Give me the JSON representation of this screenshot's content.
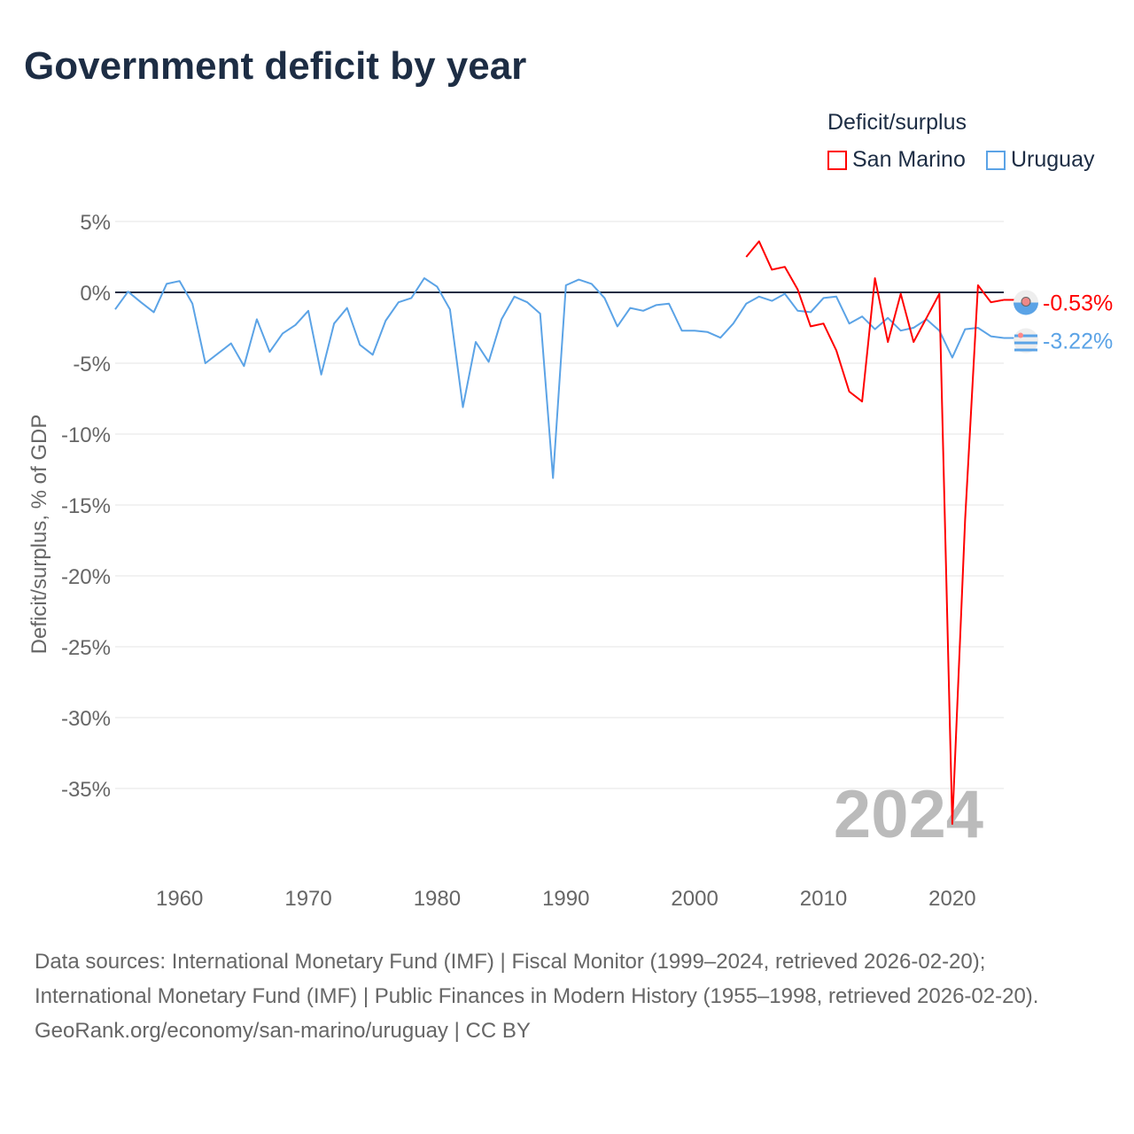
{
  "title": "Government deficit by year",
  "legend": {
    "title": "Deficit/surplus",
    "items": [
      {
        "name": "San Marino",
        "color": "#ff0000"
      },
      {
        "name": "Uruguay",
        "color": "#5ba3e6"
      }
    ]
  },
  "chart_data": {
    "type": "line",
    "title": "Government deficit by year",
    "xlabel": "",
    "ylabel": "Deficit/surplus, % of GDP",
    "xlim": [
      1955,
      2024
    ],
    "ylim": [
      -40,
      5
    ],
    "yticks": [
      5,
      0,
      -5,
      -10,
      -15,
      -20,
      -25,
      -30,
      -35
    ],
    "ytick_labels": [
      "5%",
      "0%",
      "-5%",
      "-10%",
      "-15%",
      "-20%",
      "-25%",
      "-30%",
      "-35%"
    ],
    "xticks": [
      1960,
      1970,
      1980,
      1990,
      2000,
      2010,
      2020
    ],
    "xtick_labels": [
      "1960",
      "1970",
      "1980",
      "1990",
      "2000",
      "2010",
      "2020"
    ],
    "grid": true,
    "year_watermark": "2024",
    "series": [
      {
        "name": "San Marino",
        "color": "#ff0000",
        "start_year": 2004,
        "end_label": "-0.53%",
        "values": [
          2.5,
          3.6,
          1.6,
          1.8,
          0.2,
          -2.4,
          -2.2,
          -4.1,
          -7.0,
          -7.7,
          1.0,
          -3.5,
          -0.1,
          -3.5,
          -1.8,
          -0.1,
          -37.5,
          -16.0,
          0.5,
          -0.7,
          -0.53
        ]
      },
      {
        "name": "Uruguay",
        "color": "#5ba3e6",
        "start_year": 1955,
        "end_label": "-3.22%",
        "values": [
          -1.2,
          0.05,
          -0.7,
          -1.4,
          0.6,
          0.8,
          -0.8,
          -5.0,
          -4.3,
          -3.6,
          -5.2,
          -1.9,
          -4.2,
          -2.9,
          -2.3,
          -1.3,
          -5.8,
          -2.2,
          -1.1,
          -3.7,
          -4.4,
          -2.0,
          -0.7,
          -0.4,
          1.0,
          0.4,
          -1.2,
          -8.1,
          -3.5,
          -4.9,
          -1.9,
          -0.3,
          -0.7,
          -1.5,
          -13.1,
          0.5,
          0.9,
          0.6,
          -0.4,
          -2.4,
          -1.1,
          -1.3,
          -0.9,
          -0.8,
          -2.7,
          -2.7,
          -2.8,
          -3.2,
          -2.2,
          -0.8,
          -0.3,
          -0.6,
          -0.1,
          -1.3,
          -1.4,
          -0.4,
          -0.3,
          -2.2,
          -1.7,
          -2.6,
          -1.8,
          -2.7,
          -2.5,
          -1.9,
          -2.7,
          -4.6,
          -2.6,
          -2.5,
          -3.1,
          -3.22
        ]
      }
    ]
  },
  "footer": {
    "sources": "Data sources: International Monetary Fund (IMF) | Fiscal Monitor (1999–2024, retrieved 2026-02-20); International Monetary Fund (IMF) | Public Finances in Modern History (1955–1998, retrieved 2026-02-20).",
    "credit": "GeoRank.org/economy/san-marino/uruguay | CC BY"
  }
}
